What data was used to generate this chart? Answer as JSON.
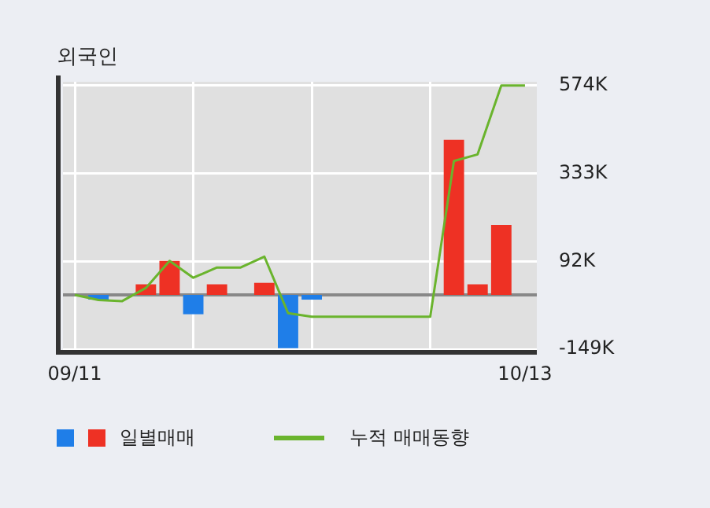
{
  "chart_data": {
    "type": "bar",
    "title": "외국인",
    "categories": [
      "09/11",
      null,
      null,
      null,
      null,
      null,
      null,
      null,
      null,
      null,
      null,
      null,
      null,
      null,
      null,
      null,
      null,
      null,
      null,
      "10/13"
    ],
    "series": [
      {
        "name": "일별매매",
        "colors": [
          "#1f7ee8",
          "#1f7ee8",
          "#ee3124",
          "#ee3124",
          "#ee3124",
          "#1f7ee8",
          "#ee3124",
          "#ee3124",
          "#ee3124",
          "#1f7ee8",
          "#1f7ee8",
          "#ee3124",
          "#ee3124",
          "#ee3124",
          "#ee3124",
          "#ee3124",
          "#ee3124",
          "#ee3124",
          "#ee3124",
          "#ee3124"
        ],
        "values": [
          0,
          -13000,
          0,
          29000,
          93000,
          -53000,
          29000,
          0,
          33000,
          -146000,
          -13000,
          0,
          0,
          0,
          0,
          0,
          425000,
          29000,
          192000,
          0
        ]
      },
      {
        "name": "누적 매매동향",
        "type": "line",
        "color": "#6ab42d",
        "values": [
          0,
          -14000,
          -17000,
          19000,
          93000,
          47000,
          75000,
          75000,
          105000,
          -50000,
          -60000,
          -60000,
          -60000,
          -60000,
          -60000,
          -60000,
          367000,
          385000,
          574000,
          574000
        ]
      }
    ],
    "ylim": [
      -153000,
      584000
    ],
    "yticks": [
      {
        "value": -149000,
        "label": "-149K"
      },
      {
        "value": 92000,
        "label": "92K"
      },
      {
        "value": 333000,
        "label": "333K"
      },
      {
        "value": 574000,
        "label": "574K"
      }
    ],
    "ref_lines": [
      {
        "axis": "y",
        "value": 0,
        "color": "#888888"
      }
    ],
    "grid": true,
    "legend": "bottom",
    "marker": "none"
  }
}
